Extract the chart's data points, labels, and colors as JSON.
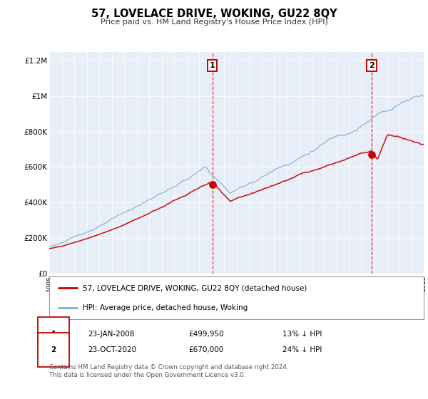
{
  "title": "57, LOVELACE DRIVE, WOKING, GU22 8QY",
  "subtitle": "Price paid vs. HM Land Registry's House Price Index (HPI)",
  "legend_label_red": "57, LOVELACE DRIVE, WOKING, GU22 8QY (detached house)",
  "legend_label_blue": "HPI: Average price, detached house, Woking",
  "sale1_label": "1",
  "sale1_date": "23-JAN-2008",
  "sale1_price": "£499,950",
  "sale1_hpi": "13% ↓ HPI",
  "sale1_year": 2008.07,
  "sale1_value": 499950,
  "sale2_label": "2",
  "sale2_date": "23-OCT-2020",
  "sale2_price": "£670,000",
  "sale2_hpi": "24% ↓ HPI",
  "sale2_year": 2020.82,
  "sale2_value": 670000,
  "footer_line1": "Contains HM Land Registry data © Crown copyright and database right 2024.",
  "footer_line2": "This data is licensed under the Open Government Licence v3.0.",
  "plot_bg_color": "#e8eef8",
  "red_color": "#cc0000",
  "blue_color": "#7ab0d4",
  "ylim": [
    0,
    1250000
  ],
  "xlim_start": 1995,
  "xlim_end": 2025,
  "yticks": [
    0,
    200000,
    400000,
    600000,
    800000,
    1000000,
    1200000
  ],
  "ylabels": [
    "£0",
    "£200K",
    "£400K",
    "£600K",
    "£800K",
    "£1M",
    "£1.2M"
  ]
}
